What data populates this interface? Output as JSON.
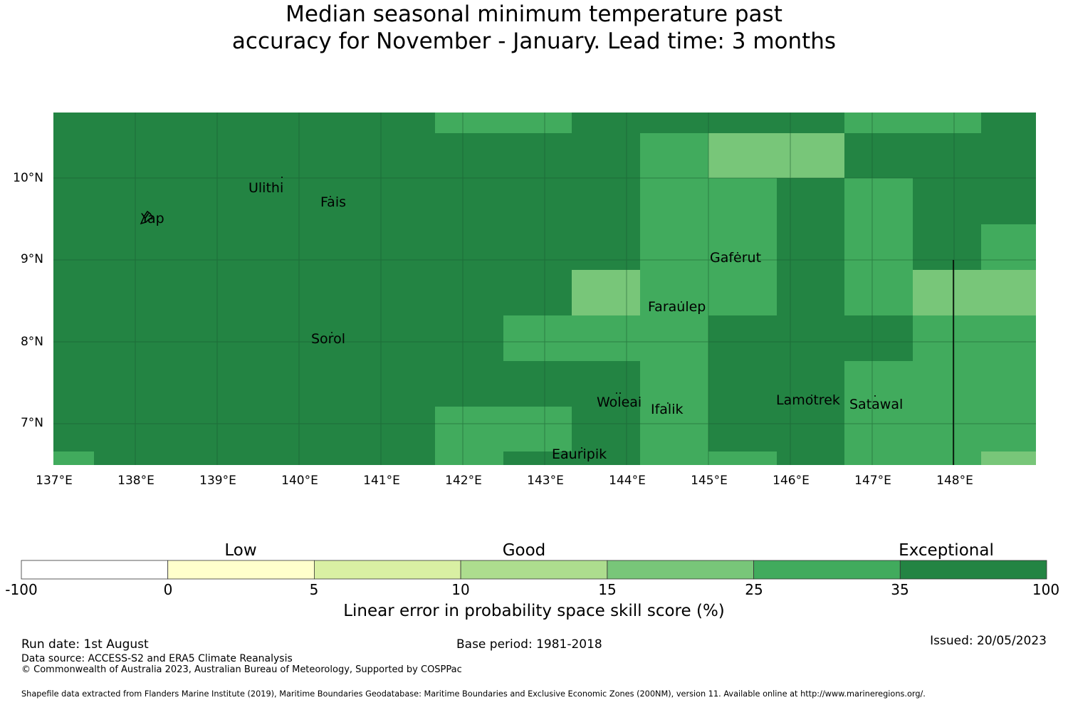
{
  "title": {
    "line1": "Median seasonal minimum temperature past",
    "line2": "accuracy for November - January. Lead time: 3 months"
  },
  "map": {
    "lon_ticks": [
      "137°E",
      "138°E",
      "139°E",
      "140°E",
      "141°E",
      "142°E",
      "143°E",
      "144°E",
      "145°E",
      "146°E",
      "147°E",
      "148°E"
    ],
    "lat_ticks": [
      "10°N",
      "9°N",
      "8°N",
      "7°N"
    ],
    "places": [
      {
        "name": "Ulithi"
      },
      {
        "name": "Fais"
      },
      {
        "name": "Yap"
      },
      {
        "name": "Gaferut"
      },
      {
        "name": "Faraulep"
      },
      {
        "name": "Sorol"
      },
      {
        "name": "Woleai"
      },
      {
        "name": "Ifalik"
      },
      {
        "name": "Lamotrek"
      },
      {
        "name": "Satawal"
      },
      {
        "name": "Eauripik"
      }
    ],
    "colors": {
      "exceptional": "#238443",
      "good_high": "#41ab5d",
      "good_mid": "#78c679",
      "gridline": "#1a5c30"
    }
  },
  "colorbar": {
    "categories": [
      "Low",
      "Good",
      "Exceptional"
    ],
    "ticks": [
      "-100",
      "0",
      "5",
      "10",
      "15",
      "25",
      "35",
      "100"
    ],
    "colors": [
      "#ffffff",
      "#ffffcc",
      "#d9f0a3",
      "#addd8e",
      "#78c679",
      "#41ab5d",
      "#238443"
    ],
    "title": "Linear error in probability space skill score (%)"
  },
  "footer": {
    "run_date": "Run date: 1st August",
    "base_period": "Base period: 1981-2018",
    "issued": "Issued: 20/05/2023",
    "data_source": "Data source: ACCESS-S2 and ERA5 Climate Reanalysis",
    "copyright": "© Commonwealth of Australia 2023, Australian Bureau of Meteorology, Supported by COSPPac",
    "shapefile": "Shapefile data extracted from Flanders Marine Institute (2019), Maritime Boundaries Geodatabase: Maritime Boundaries and Exclusive Economic Zones (200NM), version 11. Available online at http://www.marineregions.org/."
  }
}
